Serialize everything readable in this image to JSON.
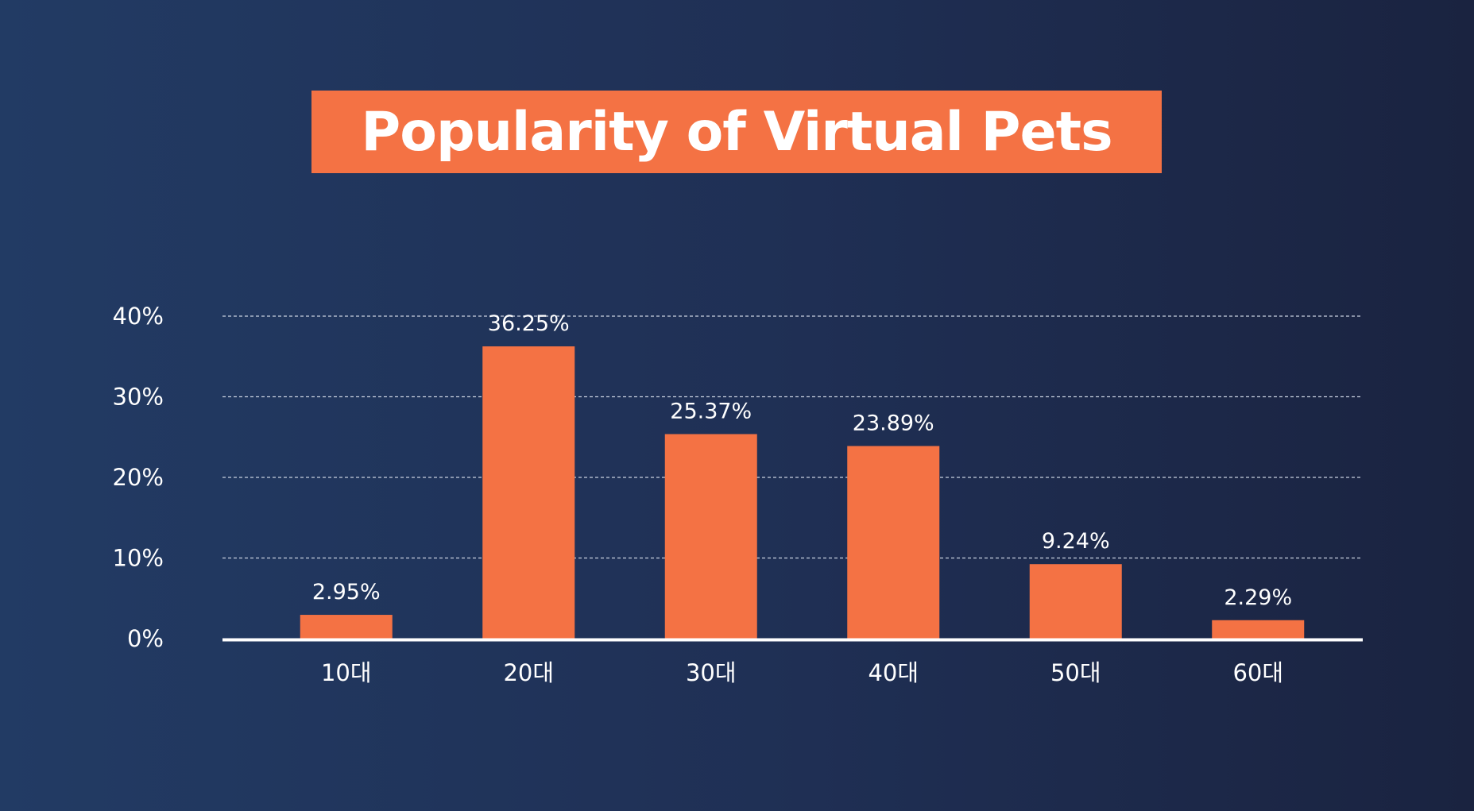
{
  "chart_data": {
    "type": "bar",
    "title": "Popularity of Virtual Pets",
    "categories": [
      "10대",
      "20대",
      "30대",
      "40대",
      "50대",
      "60대"
    ],
    "values": [
      2.95,
      36.25,
      25.37,
      23.89,
      9.24,
      2.29
    ],
    "value_labels": [
      "2.95%",
      "36.25%",
      "25.37%",
      "23.89%",
      "9.24%",
      "2.29%"
    ],
    "yticks": [
      0,
      10,
      20,
      30,
      40
    ],
    "ytick_labels": [
      "0%",
      "10%",
      "20%",
      "30%",
      "40%"
    ],
    "ylim": [
      0,
      40
    ],
    "xlabel": "",
    "ylabel": "",
    "grid": true,
    "legend": "none",
    "colors": {
      "bar": "#f47244",
      "banner": "#f47244",
      "text": "#ffffff",
      "gridline": "#c9d1e0",
      "axis": "#ffffff"
    }
  }
}
